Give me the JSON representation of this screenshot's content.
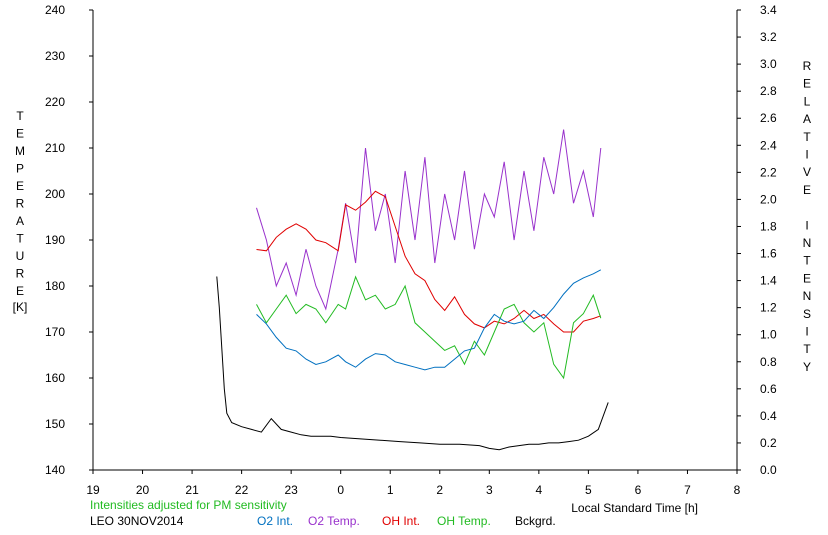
{
  "chart_data": {
    "type": "line",
    "title": "",
    "left_axis": {
      "label": "TEMPERATURE",
      "unit": "[K]",
      "range": [
        140,
        240
      ],
      "ticks": [
        "140",
        "150",
        "160",
        "170",
        "180",
        "190",
        "200",
        "210",
        "220",
        "230",
        "240"
      ]
    },
    "right_axis": {
      "label": "RELATIVE INTENSITY",
      "range": [
        0.0,
        3.4
      ],
      "ticks": [
        "0.0",
        "0.2",
        "0.4",
        "0.6",
        "0.8",
        "1.0",
        "1.2",
        "1.4",
        "1.6",
        "1.8",
        "2.0",
        "2.2",
        "2.4",
        "2.6",
        "2.8",
        "3.0",
        "3.2",
        "3.4"
      ]
    },
    "x_axis": {
      "label": "Local Standard Time [h]",
      "range": [
        19,
        32
      ],
      "ticks": [
        "19",
        "20",
        "21",
        "22",
        "23",
        "0",
        "1",
        "2",
        "3",
        "4",
        "5",
        "6",
        "7",
        "8"
      ]
    },
    "grid": false,
    "note": "Intensities adjusted for PM sensitivity",
    "station_date": "LEO 30NOV2014",
    "legend": [
      {
        "label": "O2 Int.",
        "color": "#0070c0"
      },
      {
        "label": "O2 Temp.",
        "color": "#9932cc"
      },
      {
        "label": "OH Int.",
        "color": "#e00000"
      },
      {
        "label": "OH Temp.",
        "color": "#22bb22"
      },
      {
        "label": "Bckgrd.",
        "color": "#000000"
      }
    ],
    "series": [
      {
        "name": "O2 Temp.",
        "axis": "left",
        "color": "#9932cc",
        "x": [
          22.3,
          22.5,
          22.7,
          22.9,
          23.1,
          23.3,
          23.5,
          23.7,
          23.95,
          24.1,
          24.3,
          24.5,
          24.7,
          24.9,
          25.1,
          25.3,
          25.5,
          25.7,
          25.9,
          26.1,
          26.3,
          26.5,
          26.7,
          26.9,
          27.1,
          27.3,
          27.5,
          27.7,
          27.9,
          28.1,
          28.3,
          28.5,
          28.7,
          28.9,
          29.1,
          29.25
        ],
        "y": [
          197,
          190,
          180,
          185,
          178,
          188,
          180,
          175,
          188,
          198,
          185,
          210,
          192,
          200,
          185,
          205,
          190,
          208,
          185,
          200,
          190,
          205,
          188,
          200,
          195,
          207,
          190,
          205,
          192,
          208,
          200,
          214,
          198,
          205,
          195,
          210
        ]
      },
      {
        "name": "OH Int.",
        "axis": "right",
        "color": "#e00000",
        "x": [
          22.3,
          22.5,
          22.7,
          22.9,
          23.1,
          23.3,
          23.5,
          23.7,
          23.95,
          24.1,
          24.3,
          24.5,
          24.7,
          24.9,
          25.1,
          25.3,
          25.5,
          25.7,
          25.9,
          26.1,
          26.3,
          26.5,
          26.7,
          26.9,
          27.1,
          27.3,
          27.5,
          27.7,
          27.9,
          28.1,
          28.3,
          28.5,
          28.7,
          28.9,
          29.1,
          29.25
        ],
        "y": [
          1.63,
          1.62,
          1.72,
          1.78,
          1.82,
          1.78,
          1.7,
          1.68,
          1.62,
          1.96,
          1.92,
          1.98,
          2.06,
          2.02,
          1.8,
          1.58,
          1.45,
          1.4,
          1.26,
          1.18,
          1.28,
          1.15,
          1.08,
          1.05,
          1.1,
          1.08,
          1.12,
          1.18,
          1.12,
          1.15,
          1.08,
          1.02,
          1.02,
          1.1,
          1.12,
          1.14
        ]
      },
      {
        "name": "OH Temp.",
        "axis": "left",
        "color": "#22bb22",
        "x": [
          22.3,
          22.5,
          22.7,
          22.9,
          23.1,
          23.3,
          23.5,
          23.7,
          23.95,
          24.1,
          24.3,
          24.5,
          24.7,
          24.9,
          25.1,
          25.3,
          25.5,
          25.7,
          25.9,
          26.1,
          26.3,
          26.5,
          26.7,
          26.9,
          27.1,
          27.3,
          27.5,
          27.7,
          27.9,
          28.1,
          28.3,
          28.5,
          28.7,
          28.9,
          29.1,
          29.25
        ],
        "y": [
          176,
          172,
          175,
          178,
          174,
          176,
          175,
          172,
          176,
          175,
          182,
          177,
          178,
          175,
          176,
          180,
          172,
          170,
          168,
          166,
          167,
          163,
          168,
          165,
          170,
          175,
          176,
          172,
          170,
          172,
          163,
          160,
          172,
          174,
          178,
          173
        ]
      },
      {
        "name": "O2 Int.",
        "axis": "right",
        "color": "#0070c0",
        "x": [
          22.3,
          22.5,
          22.7,
          22.9,
          23.1,
          23.3,
          23.5,
          23.7,
          23.95,
          24.1,
          24.3,
          24.5,
          24.7,
          24.9,
          25.1,
          25.3,
          25.5,
          25.7,
          25.9,
          26.1,
          26.3,
          26.5,
          26.7,
          26.9,
          27.1,
          27.3,
          27.5,
          27.7,
          27.9,
          28.1,
          28.3,
          28.5,
          28.7,
          28.9,
          29.1,
          29.25
        ],
        "y": [
          1.15,
          1.08,
          0.98,
          0.9,
          0.88,
          0.82,
          0.78,
          0.8,
          0.85,
          0.8,
          0.76,
          0.82,
          0.86,
          0.85,
          0.8,
          0.78,
          0.76,
          0.74,
          0.76,
          0.76,
          0.82,
          0.88,
          0.9,
          1.05,
          1.15,
          1.1,
          1.08,
          1.1,
          1.18,
          1.12,
          1.2,
          1.3,
          1.38,
          1.42,
          1.45,
          1.48
        ]
      },
      {
        "name": "Bckgrd.",
        "axis": "right",
        "color": "#000000",
        "x": [
          21.5,
          21.55,
          21.6,
          21.65,
          21.7,
          21.8,
          22.0,
          22.2,
          22.4,
          22.6,
          22.8,
          23.0,
          23.2,
          23.4,
          23.6,
          23.8,
          24.0,
          24.4,
          24.8,
          25.2,
          25.6,
          26.0,
          26.4,
          26.8,
          27.0,
          27.2,
          27.4,
          27.6,
          27.8,
          28.0,
          28.2,
          28.4,
          28.6,
          28.8,
          29.0,
          29.2,
          29.4
        ],
        "y": [
          1.43,
          1.2,
          0.9,
          0.6,
          0.42,
          0.35,
          0.32,
          0.3,
          0.28,
          0.38,
          0.3,
          0.28,
          0.26,
          0.25,
          0.25,
          0.25,
          0.24,
          0.23,
          0.22,
          0.21,
          0.2,
          0.19,
          0.19,
          0.18,
          0.16,
          0.15,
          0.17,
          0.18,
          0.19,
          0.19,
          0.2,
          0.2,
          0.21,
          0.22,
          0.25,
          0.3,
          0.5
        ]
      }
    ]
  }
}
